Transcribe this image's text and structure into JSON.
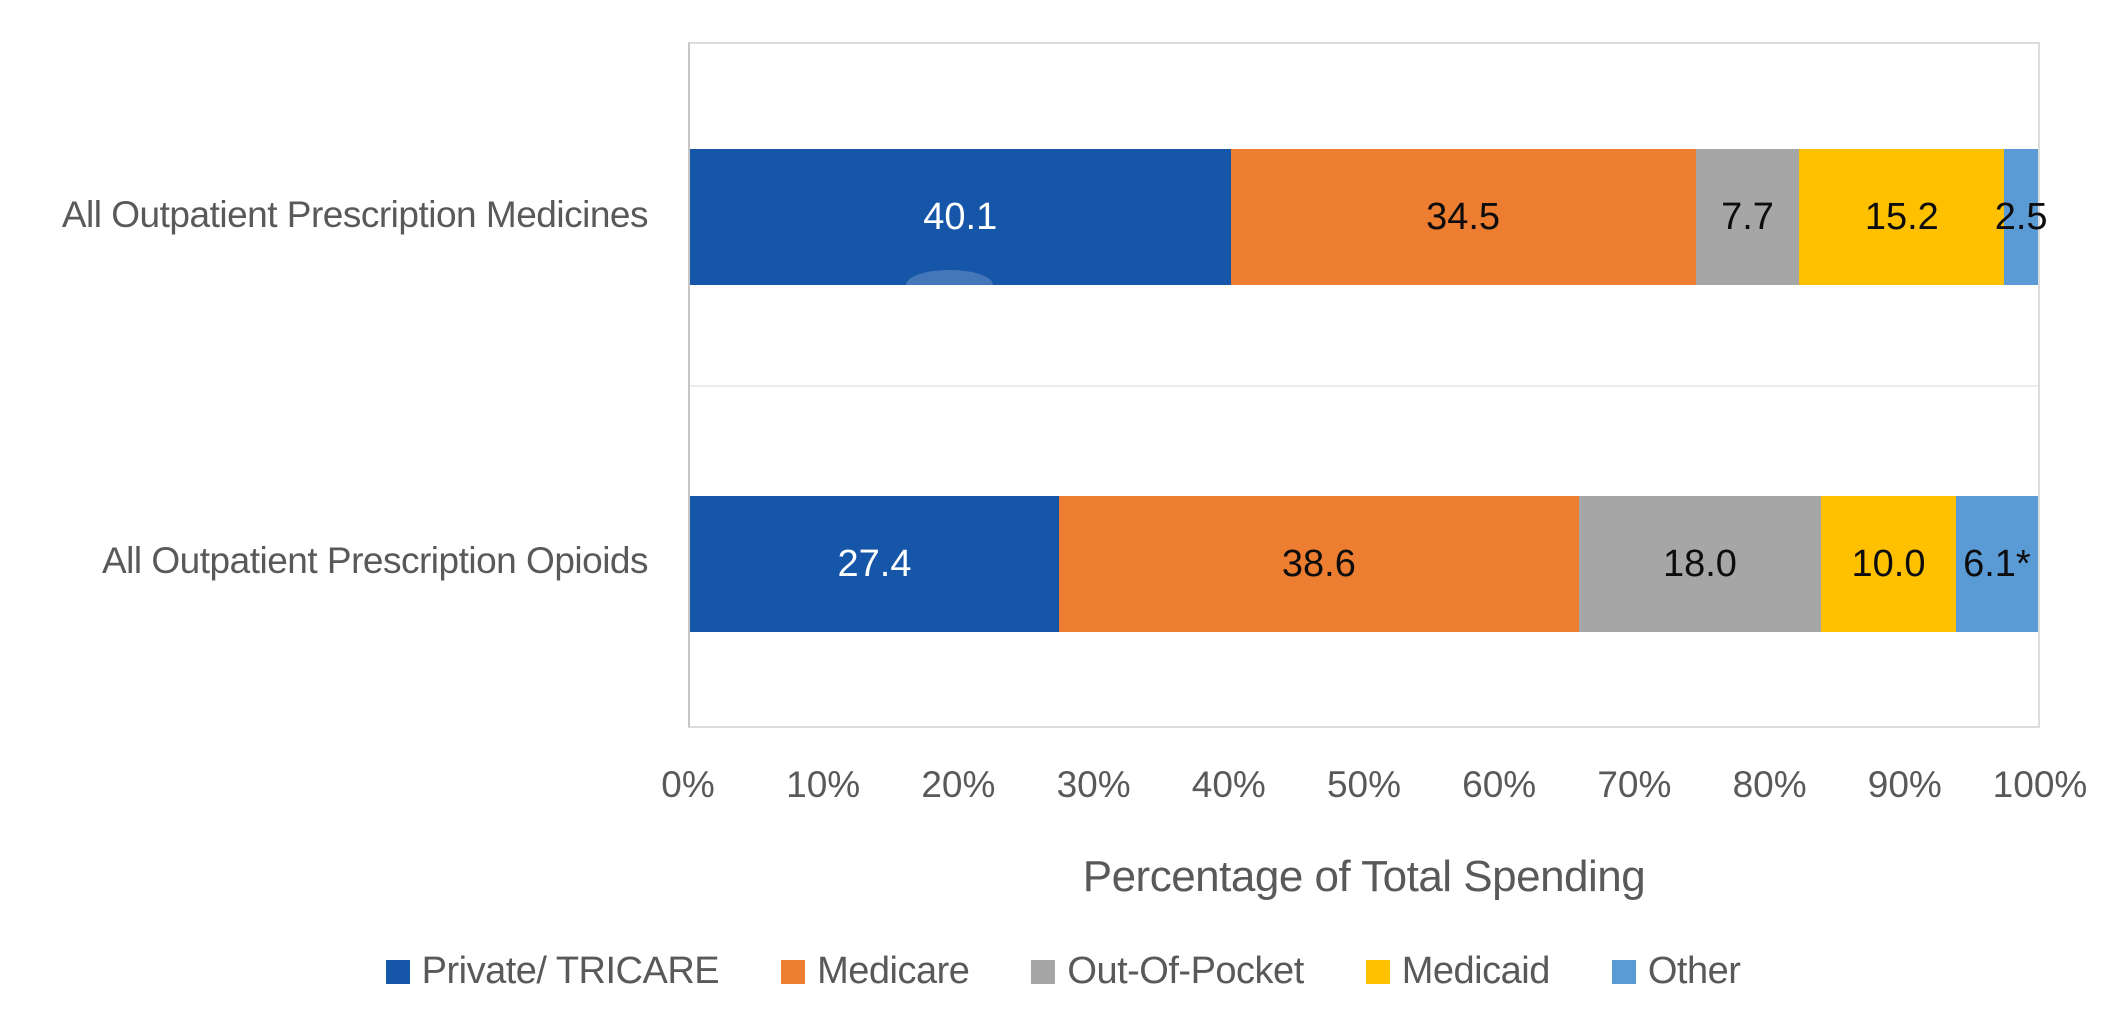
{
  "chart_data": {
    "type": "bar",
    "stacked": true,
    "orientation": "horizontal",
    "title": "",
    "xlabel": "Percentage of Total Spending",
    "ylabel": "",
    "xlim": [
      0,
      100
    ],
    "x_ticks": [
      "0%",
      "10%",
      "20%",
      "30%",
      "40%",
      "50%",
      "60%",
      "70%",
      "80%",
      "90%",
      "100%"
    ],
    "gridlines": "category-separator-only",
    "legend_position": "bottom",
    "categories": [
      "All Outpatient Prescription Medicines",
      "All Outpatient Prescription Opioids"
    ],
    "series": [
      {
        "name": "Private/ TRICARE",
        "color": "#1656a8",
        "values": [
          40.1,
          27.4
        ],
        "labels": [
          "40.1",
          "27.4"
        ],
        "label_color": "#ffffff"
      },
      {
        "name": "Medicare",
        "color": "#ed7d31",
        "values": [
          34.5,
          38.6
        ],
        "labels": [
          "34.5",
          "38.6"
        ],
        "label_color": "#0d0d0d"
      },
      {
        "name": "Out-Of-Pocket",
        "color": "#a6a6a6",
        "values": [
          7.7,
          18.0
        ],
        "labels": [
          "7.7",
          "18.0"
        ],
        "label_color": "#0d0d0d"
      },
      {
        "name": "Medicaid",
        "color": "#ffc000",
        "values": [
          15.2,
          10.0
        ],
        "labels": [
          "15.2",
          "10.0"
        ],
        "label_color": "#0d0d0d"
      },
      {
        "name": "Other",
        "color": "#5b9bd5",
        "values": [
          2.5,
          6.1
        ],
        "labels": [
          "2.5",
          "6.1*"
        ],
        "label_color": "#0d0d0d"
      }
    ],
    "footnote_marker": "*"
  },
  "colors": {
    "axis_text": "#595959",
    "plot_border": "#dcdcdc",
    "axis_line": "#c6c6c6",
    "gridline": "#ededed",
    "background": "#ffffff"
  }
}
